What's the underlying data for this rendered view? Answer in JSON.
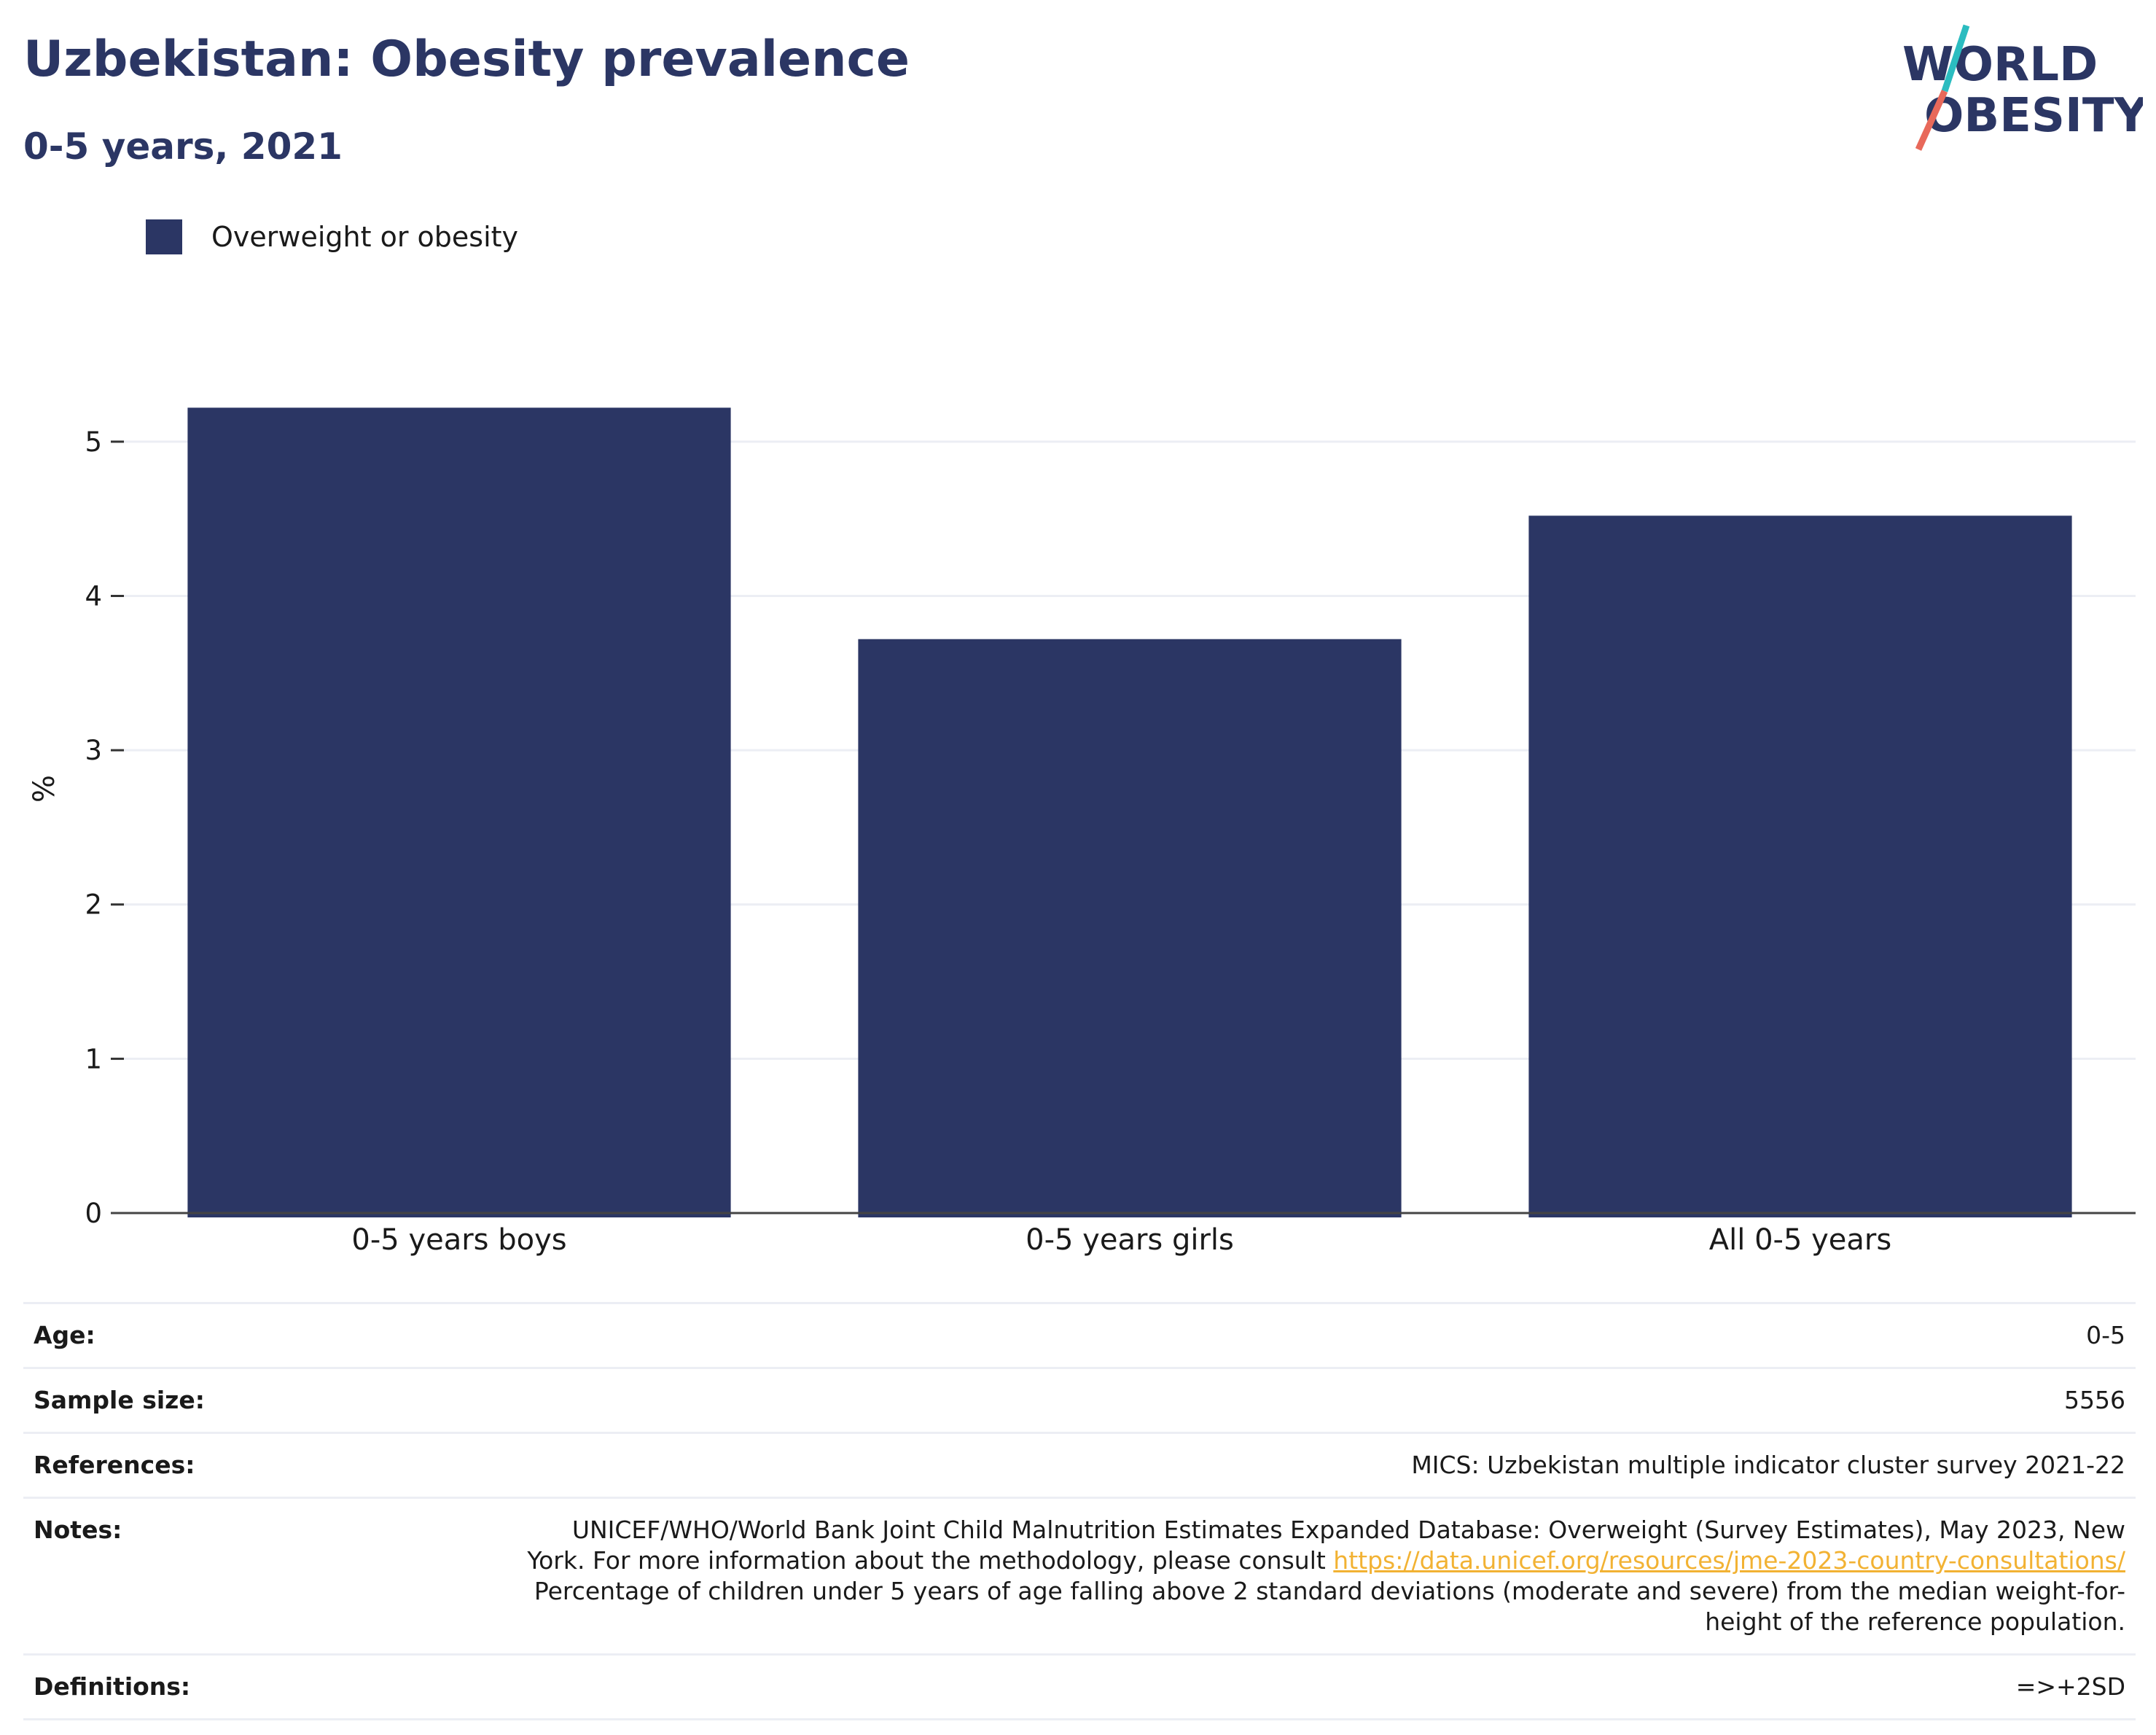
{
  "title": "Uzbekistan: Obesity prevalence",
  "subtitle": "0-5 years, 2021",
  "logo": {
    "line1": "WORLD",
    "line2": "OBESITY"
  },
  "colors": {
    "bar": "#2b3664",
    "title": "#2b3664",
    "link": "#f2b233",
    "logo_teal": "#2bbcc0",
    "logo_coral": "#e8695a"
  },
  "chart_data": {
    "type": "bar",
    "categories": [
      "0-5 years boys",
      "0-5 years girls",
      "All 0-5 years"
    ],
    "series": [
      {
        "name": "Overweight or obesity",
        "values": [
          5.22,
          3.72,
          4.52
        ]
      }
    ],
    "ylabel": "%",
    "xlabel": "",
    "yticks": [
      0,
      1,
      2,
      3,
      4,
      5
    ],
    "ylim": [
      0,
      5.5
    ],
    "grid": true,
    "legend": "top-left"
  },
  "info": {
    "age": {
      "label": "Age:",
      "value": "0-5"
    },
    "sample_size": {
      "label": "Sample size:",
      "value": "5556"
    },
    "references": {
      "label": "References:",
      "value": "MICS: Uzbekistan multiple indicator cluster survey 2021-22"
    },
    "notes": {
      "label": "Notes:",
      "line1": "UNICEF/WHO/World Bank Joint Child Malnutrition Estimates Expanded Database: Overweight (Survey Estimates), May 2023, New",
      "line2_prefix": "York. For more information about the methodology, please consult ",
      "link": "https://data.unicef.org/resources/jme-2023-country-consultations/",
      "line3": "Percentage of children under 5 years of age falling above 2 standard deviations (moderate and severe) from the median weight-for-",
      "line4": "height of the reference population."
    },
    "definitions": {
      "label": "Definitions:",
      "value": "=>+2SD"
    }
  }
}
